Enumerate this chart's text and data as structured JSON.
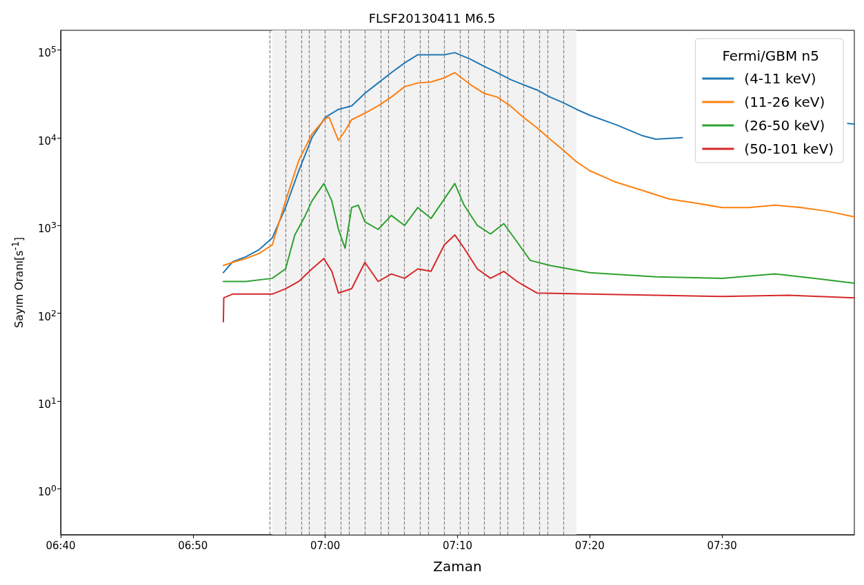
{
  "chart_data": {
    "type": "line",
    "title": "FLSF20130411 M6.5",
    "xlabel": "Zaman",
    "ylabel": "Sayım Oranı[s$^{-1}$]",
    "legend_title": "Fermi/GBM n5",
    "legend": "top right",
    "log": "y",
    "grid": false,
    "marker": "none",
    "line_style": "solid",
    "xlim": [
      6.6667,
      7.6667
    ],
    "xticks": [
      {
        "value": 6.6667,
        "label": "06:40"
      },
      {
        "value": 6.8333,
        "label": "06:50"
      },
      {
        "value": 7,
        "label": "07:00"
      },
      {
        "value": 7.1667,
        "label": "07:10"
      },
      {
        "value": 7.3333,
        "label": "07:20"
      },
      {
        "value": 7.5,
        "label": "07:30"
      }
    ],
    "ylim": [
      0.3,
      167000
    ],
    "yticks": [
      {
        "value": 1,
        "label": "10$^{0}$"
      },
      {
        "value": 10,
        "label": "10$^{1}$"
      },
      {
        "value": 100,
        "label": "10$^{2}$"
      },
      {
        "value": 1000,
        "label": "10$^{3}$"
      },
      {
        "value": 10000,
        "label": "10$^{4}$"
      },
      {
        "value": 100000,
        "label": "10$^{5}$"
      }
    ],
    "series": [
      {
        "name": "(4-11 keV)",
        "color": "#1f77b4",
        "x": [
          6.8717,
          6.8833,
          6.9,
          6.9167,
          6.9333,
          6.95,
          6.9667,
          6.9833,
          7,
          7.0167,
          7.0333,
          7.05,
          7.0667,
          7.0833,
          7.1,
          7.1167,
          7.1333,
          7.15,
          7.1633,
          7.1833,
          7.2,
          7.2167,
          7.2333,
          7.25,
          7.2667,
          7.2833,
          7.3,
          7.3167,
          7.3333,
          7.3667,
          7.4,
          7.4167,
          7.45,
          7.5,
          7.55,
          7.6,
          7.6583,
          7.6667
        ],
        "values": [
          290,
          385,
          440,
          530,
          720,
          1600,
          4200,
          10000,
          17000,
          21000,
          23000,
          32000,
          42000,
          55000,
          71000,
          88000,
          88000,
          88000,
          93000,
          78000,
          65000,
          55000,
          46000,
          40000,
          35000,
          29000,
          25000,
          21000,
          18000,
          14000,
          10500,
          9600,
          10000,
          null,
          null,
          null,
          14500,
          14300
        ]
      },
      {
        "name": "(11-26 keV)",
        "color": "#ff7f0e",
        "x": [
          6.8717,
          6.8833,
          6.9,
          6.9167,
          6.9333,
          6.95,
          6.9667,
          6.9833,
          7,
          7.005,
          7.0167,
          7.025,
          7.0333,
          7.05,
          7.0667,
          7.0833,
          7.1,
          7.1167,
          7.1333,
          7.15,
          7.1633,
          7.1833,
          7.2,
          7.2167,
          7.2333,
          7.25,
          7.2667,
          7.2833,
          7.3,
          7.3167,
          7.3333,
          7.3667,
          7.4,
          7.4333,
          7.4667,
          7.5,
          7.5333,
          7.5667,
          7.6,
          7.6333,
          7.6667
        ],
        "values": [
          350,
          380,
          420,
          480,
          600,
          1900,
          5500,
          11000,
          16500,
          17000,
          9300,
          12000,
          16000,
          19000,
          23000,
          29000,
          38000,
          42000,
          43000,
          48000,
          55000,
          40000,
          32000,
          29000,
          23000,
          17000,
          13000,
          9600,
          7200,
          5300,
          4200,
          3100,
          2500,
          2000,
          1800,
          1600,
          1600,
          1700,
          1600,
          1450,
          1250
        ]
      },
      {
        "name": "(26-50 keV)",
        "color": "#2ca02c",
        "x": [
          6.8717,
          6.9,
          6.9333,
          6.95,
          6.9617,
          6.975,
          6.9833,
          6.9983,
          7.0083,
          7.0167,
          7.025,
          7.0333,
          7.0417,
          7.05,
          7.0667,
          7.0833,
          7.1,
          7.1167,
          7.1333,
          7.15,
          7.1633,
          7.175,
          7.1917,
          7.2083,
          7.225,
          7.2417,
          7.2583,
          7.2833,
          7.3333,
          7.4167,
          7.5,
          7.5667,
          7.6167,
          7.6667
        ],
        "values": [
          230,
          230,
          250,
          320,
          780,
          1300,
          1900,
          3000,
          1900,
          900,
          550,
          1600,
          1700,
          1100,
          900,
          1300,
          1000,
          1600,
          1200,
          2000,
          3000,
          1700,
          1000,
          800,
          1050,
          650,
          400,
          350,
          290,
          260,
          250,
          280,
          250,
          220
        ]
      },
      {
        "name": "(50-101 keV)",
        "color": "#d62728",
        "x": [
          6.8717,
          6.8722,
          6.8833,
          6.9333,
          6.95,
          6.9667,
          6.9833,
          6.9983,
          7.0083,
          7.0167,
          7.0333,
          7.05,
          7.0667,
          7.0833,
          7.1,
          7.1167,
          7.1333,
          7.15,
          7.1633,
          7.175,
          7.1917,
          7.2083,
          7.225,
          7.2417,
          7.2667,
          7.3333,
          7.4167,
          7.5,
          7.5833,
          7.6667
        ],
        "values": [
          80,
          150,
          165,
          165,
          190,
          230,
          320,
          420,
          300,
          170,
          190,
          380,
          230,
          280,
          250,
          320,
          300,
          600,
          780,
          550,
          320,
          250,
          300,
          230,
          170,
          165,
          160,
          155,
          160,
          150
        ]
      }
    ],
    "bands": [
      {
        "axis": "x",
        "from": 6.9333,
        "to": 7.3167,
        "color": "#f2f2f2"
      }
    ],
    "ref_lines": [
      {
        "axis": "x",
        "value": 6.9333,
        "color": "#808080",
        "line_style": "dashed"
      },
      {
        "axis": "x",
        "value": 6.95,
        "color": "#808080",
        "line_style": "dashed"
      },
      {
        "axis": "x",
        "value": 6.9667,
        "color": "#808080",
        "line_style": "dashed"
      },
      {
        "axis": "x",
        "value": 6.9833,
        "color": "#808080",
        "line_style": "dashed"
      },
      {
        "axis": "x",
        "value": 7,
        "color": "#808080",
        "line_style": "dashed"
      },
      {
        "axis": "x",
        "value": 7.0167,
        "color": "#808080",
        "line_style": "dashed"
      },
      {
        "axis": "x",
        "value": 7.0333,
        "color": "#808080",
        "line_style": "dashed"
      },
      {
        "axis": "x",
        "value": 7.05,
        "color": "#808080",
        "line_style": "dashed"
      },
      {
        "axis": "x",
        "value": 7.0667,
        "color": "#808080",
        "line_style": "dashed"
      },
      {
        "axis": "x",
        "value": 7.0833,
        "color": "#808080",
        "line_style": "dashed"
      },
      {
        "axis": "x",
        "value": 7.1,
        "color": "#808080",
        "line_style": "dashed"
      },
      {
        "axis": "x",
        "value": 7.1167,
        "color": "#808080",
        "line_style": "dashed"
      },
      {
        "axis": "x",
        "value": 7.1333,
        "color": "#808080",
        "line_style": "dashed"
      },
      {
        "axis": "x",
        "value": 7.15,
        "color": "#808080",
        "line_style": "dashed"
      },
      {
        "axis": "x",
        "value": 7.1667,
        "color": "#808080",
        "line_style": "dashed"
      },
      {
        "axis": "x",
        "value": 7.1833,
        "color": "#808080",
        "line_style": "dashed"
      },
      {
        "axis": "x",
        "value": 7.2,
        "color": "#808080",
        "line_style": "dashed"
      },
      {
        "axis": "x",
        "value": 7.2167,
        "color": "#808080",
        "line_style": "dashed"
      },
      {
        "axis": "x",
        "value": 7.2333,
        "color": "#808080",
        "line_style": "dashed"
      },
      {
        "axis": "x",
        "value": 7.25,
        "color": "#808080",
        "line_style": "dashed"
      },
      {
        "axis": "x",
        "value": 7.2667,
        "color": "#808080",
        "line_style": "dashed"
      },
      {
        "axis": "x",
        "value": 7.2833,
        "color": "#808080",
        "line_style": "dashed"
      },
      {
        "axis": "x",
        "value": 7.3,
        "color": "#808080",
        "line_style": "dashed"
      }
    ]
  }
}
